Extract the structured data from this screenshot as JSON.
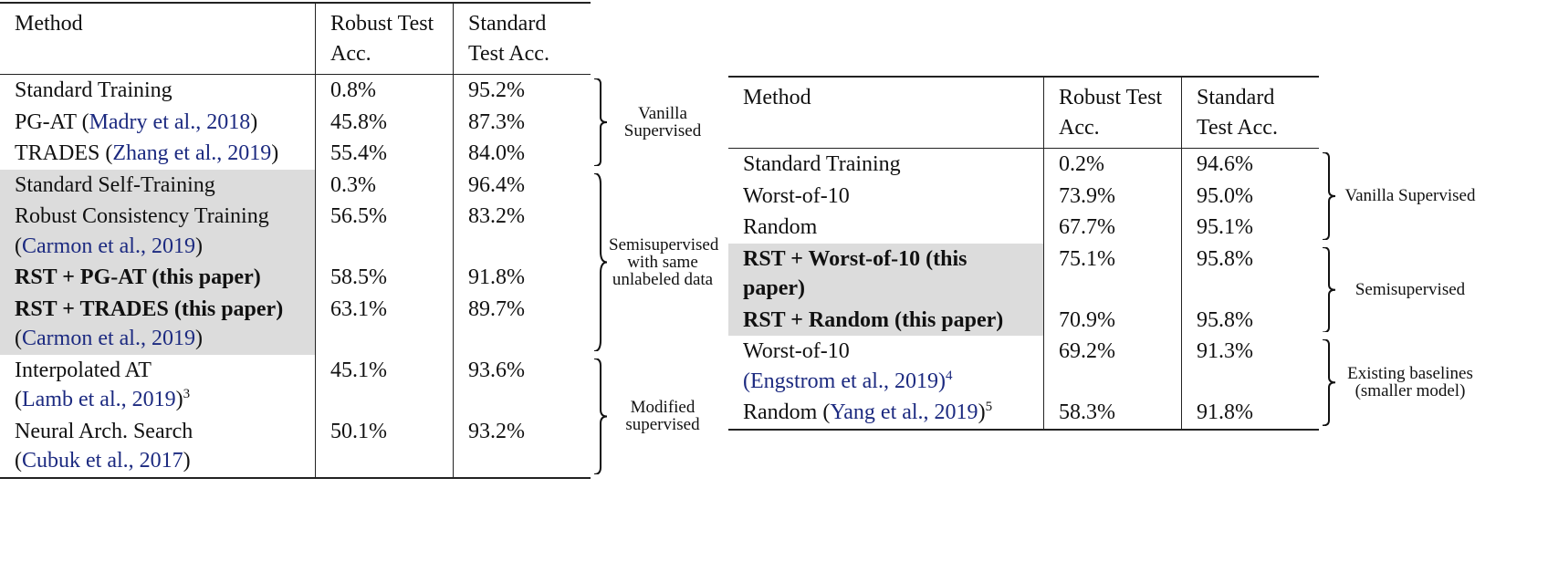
{
  "tables": [
    {
      "header": [
        "Method",
        "Robust Test Acc.",
        "Standard Test Acc."
      ],
      "groups": [
        {
          "label": "Vanilla Supervised",
          "shaded": false,
          "rows": [
            {
              "method": [
                {
                  "t": "Standard Training"
                }
              ],
              "robust": "0.8%",
              "standard": "95.2%",
              "bold": false
            },
            {
              "method": [
                {
                  "t": "PG-AT ("
                },
                {
                  "t": "Madry et al., 2018",
                  "cite": true
                },
                {
                  "t": ")"
                }
              ],
              "robust": "45.8%",
              "standard": "87.3%",
              "bold": false
            },
            {
              "method": [
                {
                  "t": "TRADES ("
                },
                {
                  "t": "Zhang et al., 2019",
                  "cite": true
                },
                {
                  "t": ")"
                }
              ],
              "robust": "55.4%",
              "standard": "84.0%",
              "bold": false
            }
          ]
        },
        {
          "label": "Semisupervised with same unlabeled data",
          "shaded": true,
          "rows": [
            {
              "method": [
                {
                  "t": "Standard Self-Training"
                }
              ],
              "robust": "0.3%",
              "standard": "96.4%",
              "bold": false
            },
            {
              "method": [
                {
                  "t": "Robust Consistency Training"
                },
                {
                  "t": "(",
                  "newline": true
                },
                {
                  "t": "Carmon et al., 2019",
                  "cite": true
                },
                {
                  "t": ")"
                }
              ],
              "robust": "56.5%",
              "standard": "83.2%",
              "bold": false
            },
            {
              "method": [
                {
                  "t": "RST + PG-AT (this paper)",
                  "bold": true
                }
              ],
              "robust": "58.5%",
              "standard": "91.8%",
              "bold": true
            },
            {
              "method": [
                {
                  "t": "RST + TRADES (this paper)",
                  "bold": true
                },
                {
                  "t": "(",
                  "newline": true
                },
                {
                  "t": "Carmon et al., 2019",
                  "cite": true
                },
                {
                  "t": ")"
                }
              ],
              "robust": "63.1%",
              "standard": "89.7%",
              "bold": true
            }
          ]
        },
        {
          "label": "Modified supervised",
          "shaded": false,
          "rows": [
            {
              "method": [
                {
                  "t": "Interpolated AT"
                },
                {
                  "t": "(",
                  "newline": true
                },
                {
                  "t": "Lamb et al., 2019",
                  "cite": true
                },
                {
                  "t": ")"
                },
                {
                  "t": "3",
                  "sup": true
                }
              ],
              "robust": "45.1%",
              "standard": "93.6%",
              "bold": false
            },
            {
              "method": [
                {
                  "t": "Neural Arch. Search"
                },
                {
                  "t": "(",
                  "newline": true
                },
                {
                  "t": "Cubuk et al., 2017",
                  "cite": true
                },
                {
                  "t": ")"
                }
              ],
              "robust": "50.1%",
              "standard": "93.2%",
              "bold": false
            }
          ]
        }
      ]
    },
    {
      "header": [
        "Method",
        "Robust Test Acc.",
        "Standard Test Acc."
      ],
      "groups": [
        {
          "label": "Vanilla Supervised",
          "shaded": false,
          "rows": [
            {
              "method": [
                {
                  "t": "Standard Training"
                }
              ],
              "robust": "0.2%",
              "standard": "94.6%",
              "bold": false
            },
            {
              "method": [
                {
                  "t": "Worst-of-10"
                }
              ],
              "robust": "73.9%",
              "standard": "95.0%",
              "bold": false
            },
            {
              "method": [
                {
                  "t": "Random"
                }
              ],
              "robust": "67.7%",
              "standard": "95.1%",
              "bold": false
            }
          ]
        },
        {
          "label": "Semisupervised",
          "shaded": true,
          "rows": [
            {
              "method": [
                {
                  "t": "RST + Worst-of-10 (this paper)",
                  "bold": true
                }
              ],
              "robust": "75.1%",
              "standard": "95.8%",
              "bold": true
            },
            {
              "method": [
                {
                  "t": "RST + Random (this paper)",
                  "bold": true
                }
              ],
              "robust": "70.9%",
              "standard": "95.8%",
              "bold": true
            }
          ]
        },
        {
          "label": "Existing baselines (smaller model)",
          "shaded": false,
          "rows": [
            {
              "method": [
                {
                  "t": "Worst-of-10"
                },
                {
                  "t": "(",
                  "newline": true,
                  "cite": true
                },
                {
                  "t": "Engstrom et al., 2019)",
                  "cite": true
                },
                {
                  "t": "4",
                  "sup": true,
                  "cite": true
                }
              ],
              "robust": "69.2%",
              "standard": "91.3%",
              "bold": false
            },
            {
              "method": [
                {
                  "t": "Random ("
                },
                {
                  "t": "Yang et al., 2019",
                  "cite": true
                },
                {
                  "t": ")"
                },
                {
                  "t": "5",
                  "sup": true
                }
              ],
              "robust": "58.3%",
              "standard": "91.8%",
              "bold": false
            }
          ]
        }
      ]
    }
  ]
}
